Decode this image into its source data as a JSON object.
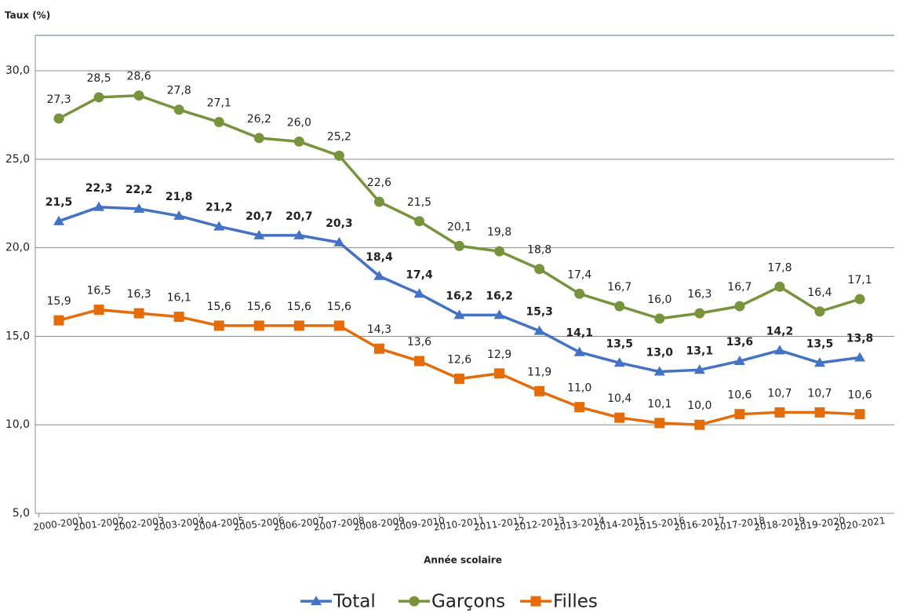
{
  "chart_data": {
    "type": "line",
    "y_axis_title": "Taux (%)",
    "x_axis_title": "Année scolaire",
    "categories": [
      "2000-2001",
      "2001-2002",
      "2002-2003",
      "2003-2004",
      "2004-2005",
      "2005-2006",
      "2006-2007",
      "2007-2008",
      "2008-2009",
      "2009-2010",
      "2010-2011",
      "2011-2012",
      "2012-2013",
      "2013-2014",
      "2014-2015",
      "2015-2016",
      "2016-2017",
      "2017-2018",
      "2018-2019",
      "2019-2020",
      "2020-2021"
    ],
    "series": [
      {
        "name": "Total",
        "color": "#4472c4",
        "marker": "triangle",
        "values": [
          21.5,
          22.3,
          22.2,
          21.8,
          21.2,
          20.7,
          20.7,
          20.3,
          18.4,
          17.4,
          16.2,
          16.2,
          15.3,
          14.1,
          13.5,
          13.0,
          13.1,
          13.6,
          14.2,
          13.5,
          13.8
        ],
        "value_labels": [
          "21,5",
          "22,3",
          "22,2",
          "21,8",
          "21,2",
          "20,7",
          "20,7",
          "20,3",
          "18,4",
          "17,4",
          "16,2",
          "16,2",
          "15,3",
          "14,1",
          "13,5",
          "13,0",
          "13,1",
          "13,6",
          "14,2",
          "13,5",
          "13,8"
        ]
      },
      {
        "name": "Garçons",
        "color": "#77933c",
        "marker": "circle",
        "values": [
          27.3,
          28.5,
          28.6,
          27.8,
          27.1,
          26.2,
          26.0,
          25.2,
          22.6,
          21.5,
          20.1,
          19.8,
          18.8,
          17.4,
          16.7,
          16.0,
          16.3,
          16.7,
          17.8,
          16.4,
          17.1
        ],
        "value_labels": [
          "27,3",
          "28,5",
          "28,6",
          "27,8",
          "27,1",
          "26,2",
          "26,0",
          "25,2",
          "22,6",
          "21,5",
          "20,1",
          "19,8",
          "18,8",
          "17,4",
          "16,7",
          "16,0",
          "16,3",
          "16,7",
          "17,8",
          "16,4",
          "17,1"
        ]
      },
      {
        "name": "Filles",
        "color": "#e46c0a",
        "marker": "square",
        "values": [
          15.9,
          16.5,
          16.3,
          16.1,
          15.6,
          15.6,
          15.6,
          15.6,
          14.3,
          13.6,
          12.6,
          12.9,
          11.9,
          11.0,
          10.4,
          10.1,
          10.0,
          10.6,
          10.7,
          10.7,
          10.6
        ],
        "value_labels": [
          "15,9",
          "16,5",
          "16,3",
          "16,1",
          "15,6",
          "15,6",
          "15,6",
          "15,6",
          "14,3",
          "13,6",
          "12,6",
          "12,9",
          "11,9",
          "11,0",
          "10,4",
          "10,1",
          "10,0",
          "10,6",
          "10,7",
          "10,7",
          "10,6"
        ]
      }
    ],
    "ylim": [
      5,
      32
    ],
    "yticks": [
      {
        "value": 5,
        "label": "5,0"
      },
      {
        "value": 10,
        "label": "10,0"
      },
      {
        "value": 15,
        "label": "15,0"
      },
      {
        "value": 20,
        "label": "20,0"
      },
      {
        "value": 25,
        "label": "25,0"
      },
      {
        "value": 30,
        "label": "30,0"
      }
    ],
    "grid": true,
    "legend_position": "bottom"
  }
}
